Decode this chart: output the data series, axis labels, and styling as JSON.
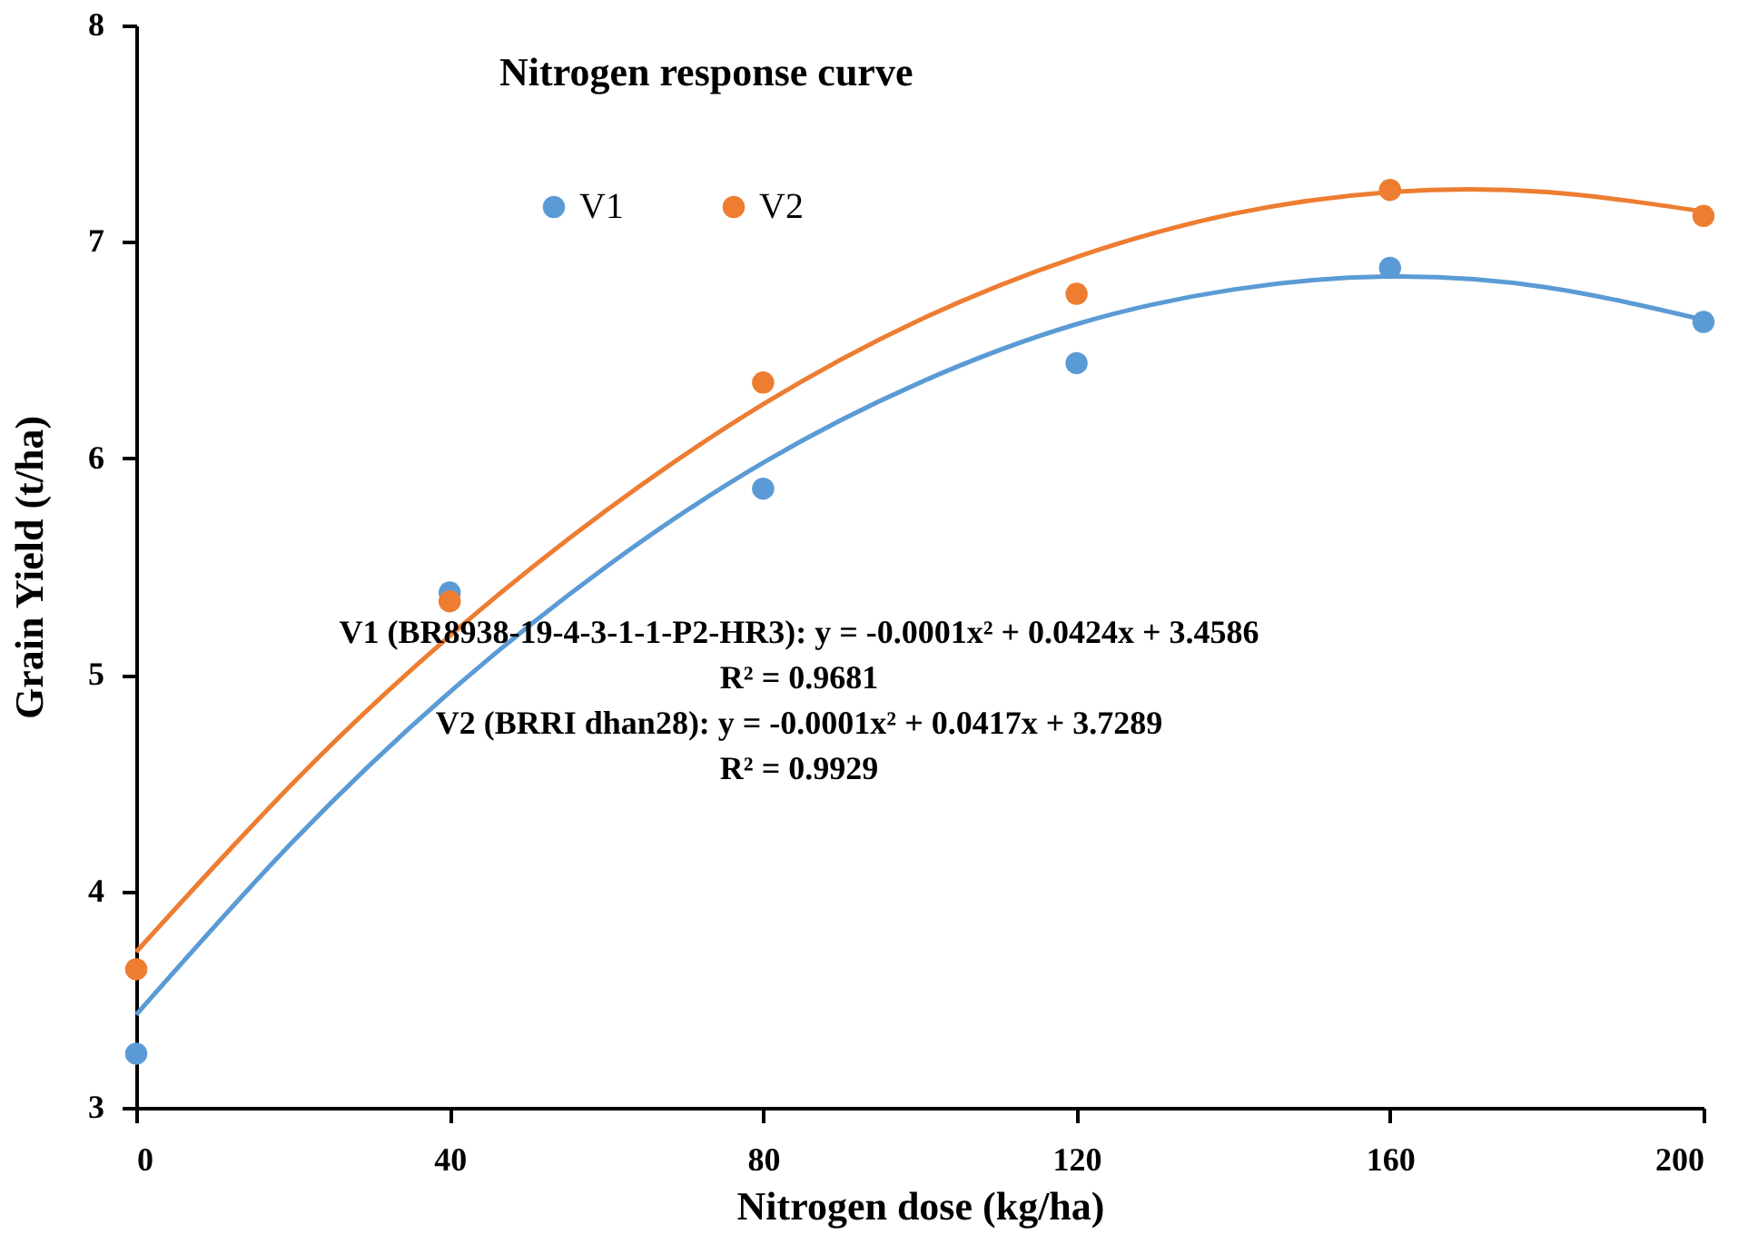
{
  "chart_data": {
    "type": "scatter",
    "title": "Nitrogen response curve",
    "xlabel": "Nitrogen dose (kg/ha)",
    "ylabel": "Grain Yield (t/ha)",
    "x": [
      0,
      40,
      80,
      120,
      160,
      200
    ],
    "series": [
      {
        "name": "V1",
        "color": "#5b9bd5",
        "marker": "circle",
        "values": [
          3.25,
          5.38,
          5.86,
          6.44,
          6.88,
          6.63
        ]
      },
      {
        "name": "V2",
        "color": "#ed7d31",
        "marker": "circle",
        "values": [
          3.64,
          5.34,
          6.35,
          6.76,
          7.24,
          7.12
        ]
      },
      {
        "type": "line",
        "color": "#5b9bd5",
        "marker": "none",
        "x": [
          0,
          20,
          40,
          60,
          80,
          100,
          120,
          140,
          160,
          180,
          200
        ],
        "values": [
          3.43,
          4.23,
          4.92,
          5.5,
          5.98,
          6.35,
          6.62,
          6.78,
          6.84,
          6.79,
          6.64
        ]
      },
      {
        "type": "line",
        "color": "#ed7d31",
        "marker": "none",
        "x": [
          0,
          20,
          40,
          60,
          80,
          100,
          120,
          140,
          160,
          180,
          200
        ],
        "values": [
          3.72,
          4.5,
          5.18,
          5.76,
          6.25,
          6.64,
          6.93,
          7.13,
          7.23,
          7.23,
          7.14
        ]
      }
    ],
    "annotations": [
      "V1 (BR8938-19-4-3-1-1-P2-HR3): y = -0.0001x² + 0.0424x + 3.4586",
      "R² = 0.9681",
      "V2 (BRRI dhan28): y = -0.0001x² + 0.0417x + 3.7289",
      "R² = 0.9929"
    ],
    "xlim": [
      0,
      200
    ],
    "xticks": [
      0,
      40,
      80,
      120,
      160,
      200
    ],
    "ylim": [
      3,
      8
    ],
    "yticks": [
      3,
      4,
      5,
      6,
      7,
      8
    ],
    "grid": false,
    "legend": "top",
    "line_style": "solid"
  }
}
